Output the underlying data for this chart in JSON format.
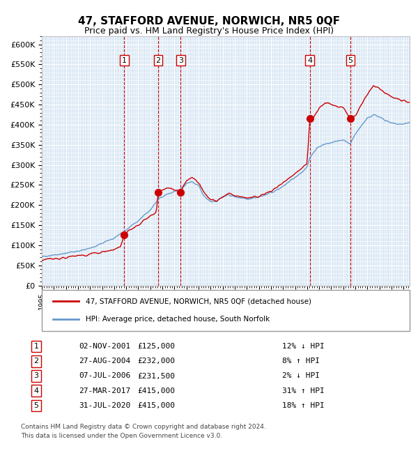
{
  "title": "47, STAFFORD AVENUE, NORWICH, NR5 0QF",
  "subtitle": "Price paid vs. HM Land Registry's House Price Index (HPI)",
  "bg_color": "#dce9f5",
  "plot_bg_color": "#dce9f5",
  "grid_color": "#ffffff",
  "red_line_color": "#cc0000",
  "blue_line_color": "#6699cc",
  "ylabel_color": "#000000",
  "transactions": [
    {
      "num": 1,
      "date_x": 2001.84,
      "price": 125000,
      "label": "02-NOV-2001",
      "price_str": "£125,000",
      "pct": "12%",
      "dir": "↓",
      "hpi_rel": "HPI"
    },
    {
      "num": 2,
      "date_x": 2004.65,
      "price": 232000,
      "label": "27-AUG-2004",
      "price_str": "£232,000",
      "pct": "8%",
      "dir": "↑",
      "hpi_rel": "HPI"
    },
    {
      "num": 3,
      "date_x": 2006.51,
      "price": 231500,
      "label": "07-JUL-2006",
      "price_str": "£231,500",
      "pct": "2%",
      "dir": "↓",
      "hpi_rel": "HPI"
    },
    {
      "num": 4,
      "date_x": 2017.23,
      "price": 415000,
      "label": "27-MAR-2017",
      "price_str": "£415,000",
      "pct": "31%",
      "dir": "↑",
      "hpi_rel": "HPI"
    },
    {
      "num": 5,
      "date_x": 2020.58,
      "price": 415000,
      "label": "31-JUL-2020",
      "price_str": "£415,000",
      "pct": "18%",
      "dir": "↑",
      "hpi_rel": "HPI"
    }
  ],
  "legend_line1": "47, STAFFORD AVENUE, NORWICH, NR5 0QF (detached house)",
  "legend_line2": "HPI: Average price, detached house, South Norfolk",
  "footer1": "Contains HM Land Registry data © Crown copyright and database right 2024.",
  "footer2": "This data is licensed under the Open Government Licence v3.0.",
  "ylim": [
    0,
    620000
  ],
  "xlim_start": 1995.0,
  "xlim_end": 2025.5
}
